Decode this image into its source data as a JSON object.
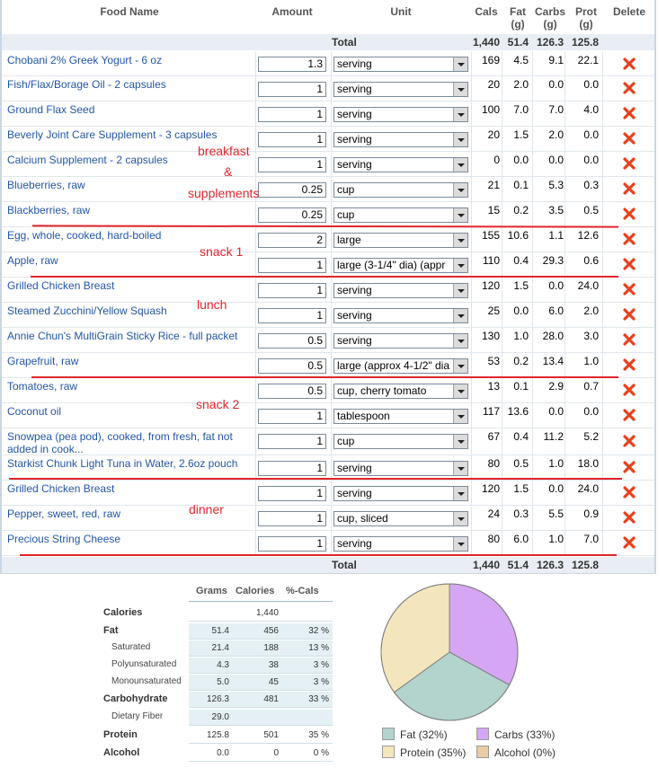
{
  "header": {
    "food_name": "Food Name",
    "amount": "Amount",
    "unit": "Unit",
    "cals": "Cals",
    "fat": "Fat\n(g)",
    "carbs": "Carbs\n(g)",
    "prot": "Prot\n(g)",
    "delete": "Delete"
  },
  "totals": {
    "label": "Total",
    "cals": "1,440",
    "fat": "51.4",
    "carbs": "126.3",
    "prot": "125.8"
  },
  "foods": [
    {
      "name": "Chobani 2% Greek Yogurt - 6 oz",
      "amount": "1.3",
      "unit": "serving",
      "cals": "169",
      "fat": "4.5",
      "carbs": "9.1",
      "prot": "22.1"
    },
    {
      "name": "Fish/Flax/Borage Oil - 2 capsules",
      "amount": "1",
      "unit": "serving",
      "cals": "20",
      "fat": "2.0",
      "carbs": "0.0",
      "prot": "0.0"
    },
    {
      "name": "Ground Flax Seed",
      "amount": "1",
      "unit": "serving",
      "cals": "100",
      "fat": "7.0",
      "carbs": "7.0",
      "prot": "4.0"
    },
    {
      "name": "Beverly Joint Care Supplement - 3 capsules",
      "amount": "1",
      "unit": "serving",
      "cals": "20",
      "fat": "1.5",
      "carbs": "2.0",
      "prot": "0.0"
    },
    {
      "name": "Calcium Supplement - 2 capsules",
      "amount": "1",
      "unit": "serving",
      "cals": "0",
      "fat": "0.0",
      "carbs": "0.0",
      "prot": "0.0"
    },
    {
      "name": "Blueberries, raw",
      "amount": "0.25",
      "unit": "cup",
      "cals": "21",
      "fat": "0.1",
      "carbs": "5.3",
      "prot": "0.3"
    },
    {
      "name": "Blackberries, raw",
      "amount": "0.25",
      "unit": "cup",
      "cals": "15",
      "fat": "0.2",
      "carbs": "3.5",
      "prot": "0.5"
    },
    {
      "name": "Egg, whole, cooked, hard-boiled",
      "amount": "2",
      "unit": "large",
      "cals": "155",
      "fat": "10.6",
      "carbs": "1.1",
      "prot": "12.6"
    },
    {
      "name": "Apple, raw",
      "amount": "1",
      "unit": "large (3-1/4\" dia) (appr",
      "cals": "110",
      "fat": "0.4",
      "carbs": "29.3",
      "prot": "0.6"
    },
    {
      "name": "Grilled Chicken Breast",
      "amount": "1",
      "unit": "serving",
      "cals": "120",
      "fat": "1.5",
      "carbs": "0.0",
      "prot": "24.0"
    },
    {
      "name": "Steamed Zucchini/Yellow Squash",
      "amount": "1",
      "unit": "serving",
      "cals": "25",
      "fat": "0.0",
      "carbs": "6.0",
      "prot": "2.0"
    },
    {
      "name": "Annie Chun's MultiGrain Sticky Rice - full packet",
      "amount": "0.5",
      "unit": "serving",
      "cals": "130",
      "fat": "1.0",
      "carbs": "28.0",
      "prot": "3.0"
    },
    {
      "name": "Grapefruit, raw",
      "amount": "0.5",
      "unit": "large (approx 4-1/2\" dia",
      "cals": "53",
      "fat": "0.2",
      "carbs": "13.4",
      "prot": "1.0"
    },
    {
      "name": "Tomatoes, raw",
      "amount": "0.5",
      "unit": "cup, cherry tomato",
      "cals": "13",
      "fat": "0.1",
      "carbs": "2.9",
      "prot": "0.7"
    },
    {
      "name": "Coconut oil",
      "amount": "1",
      "unit": "tablespoon",
      "cals": "117",
      "fat": "13.6",
      "carbs": "0.0",
      "prot": "0.0"
    },
    {
      "name": "Snowpea (pea pod), cooked, from fresh, fat not added in cook...",
      "amount": "1",
      "unit": "cup",
      "cals": "67",
      "fat": "0.4",
      "carbs": "11.2",
      "prot": "5.2"
    },
    {
      "name": "Starkist Chunk Light Tuna in Water, 2.6oz pouch",
      "amount": "1",
      "unit": "serving",
      "cals": "80",
      "fat": "0.5",
      "carbs": "1.0",
      "prot": "18.0"
    },
    {
      "name": "Grilled Chicken Breast",
      "amount": "1",
      "unit": "serving",
      "cals": "120",
      "fat": "1.5",
      "carbs": "0.0",
      "prot": "24.0"
    },
    {
      "name": "Pepper, sweet, red, raw",
      "amount": "1",
      "unit": "cup, sliced",
      "cals": "24",
      "fat": "0.3",
      "carbs": "5.5",
      "prot": "0.9"
    },
    {
      "name": "Precious String Cheese",
      "amount": "1",
      "unit": "serving",
      "cals": "80",
      "fat": "6.0",
      "carbs": "1.0",
      "prot": "7.0"
    }
  ],
  "annotations": {
    "breakfast": "breakfast",
    "amp": "&",
    "supplements": "supplements",
    "snack1": "snack 1",
    "lunch": "lunch",
    "snack2": "snack 2",
    "dinner": "dinner"
  },
  "nutrition": {
    "headers": {
      "grams": "Grams",
      "calories": "Calories",
      "pct": "%-Cals"
    },
    "rows": [
      {
        "label": "Calories",
        "grams": "",
        "calories": "1,440",
        "pct": ""
      },
      {
        "label": "Fat",
        "grams": "51.4",
        "calories": "456",
        "pct": "32 %"
      },
      {
        "label": "Saturated",
        "grams": "21.4",
        "calories": "188",
        "pct": "13 %"
      },
      {
        "label": "Polyunsaturated",
        "grams": "4.3",
        "calories": "38",
        "pct": "3 %"
      },
      {
        "label": "Monounsaturated",
        "grams": "5.0",
        "calories": "45",
        "pct": "3 %"
      },
      {
        "label": "Carbohydrate",
        "grams": "126.3",
        "calories": "481",
        "pct": "33 %"
      },
      {
        "label": "Dietary Fiber",
        "grams": "29.0",
        "calories": "",
        "pct": ""
      },
      {
        "label": "Protein",
        "grams": "125.8",
        "calories": "501",
        "pct": "35 %"
      },
      {
        "label": "Alcohol",
        "grams": "0.0",
        "calories": "0",
        "pct": "0 %"
      }
    ]
  },
  "chart_data": {
    "type": "pie",
    "labels": [
      "Fat (32%)",
      "Carbs (33%)",
      "Protein (35%)",
      "Alcohol (0%)"
    ],
    "values": [
      32,
      33,
      35,
      0
    ],
    "colors": [
      "#b3d3cd",
      "#d5a6f3",
      "#f4e6bc",
      "#e9cba5"
    ]
  }
}
